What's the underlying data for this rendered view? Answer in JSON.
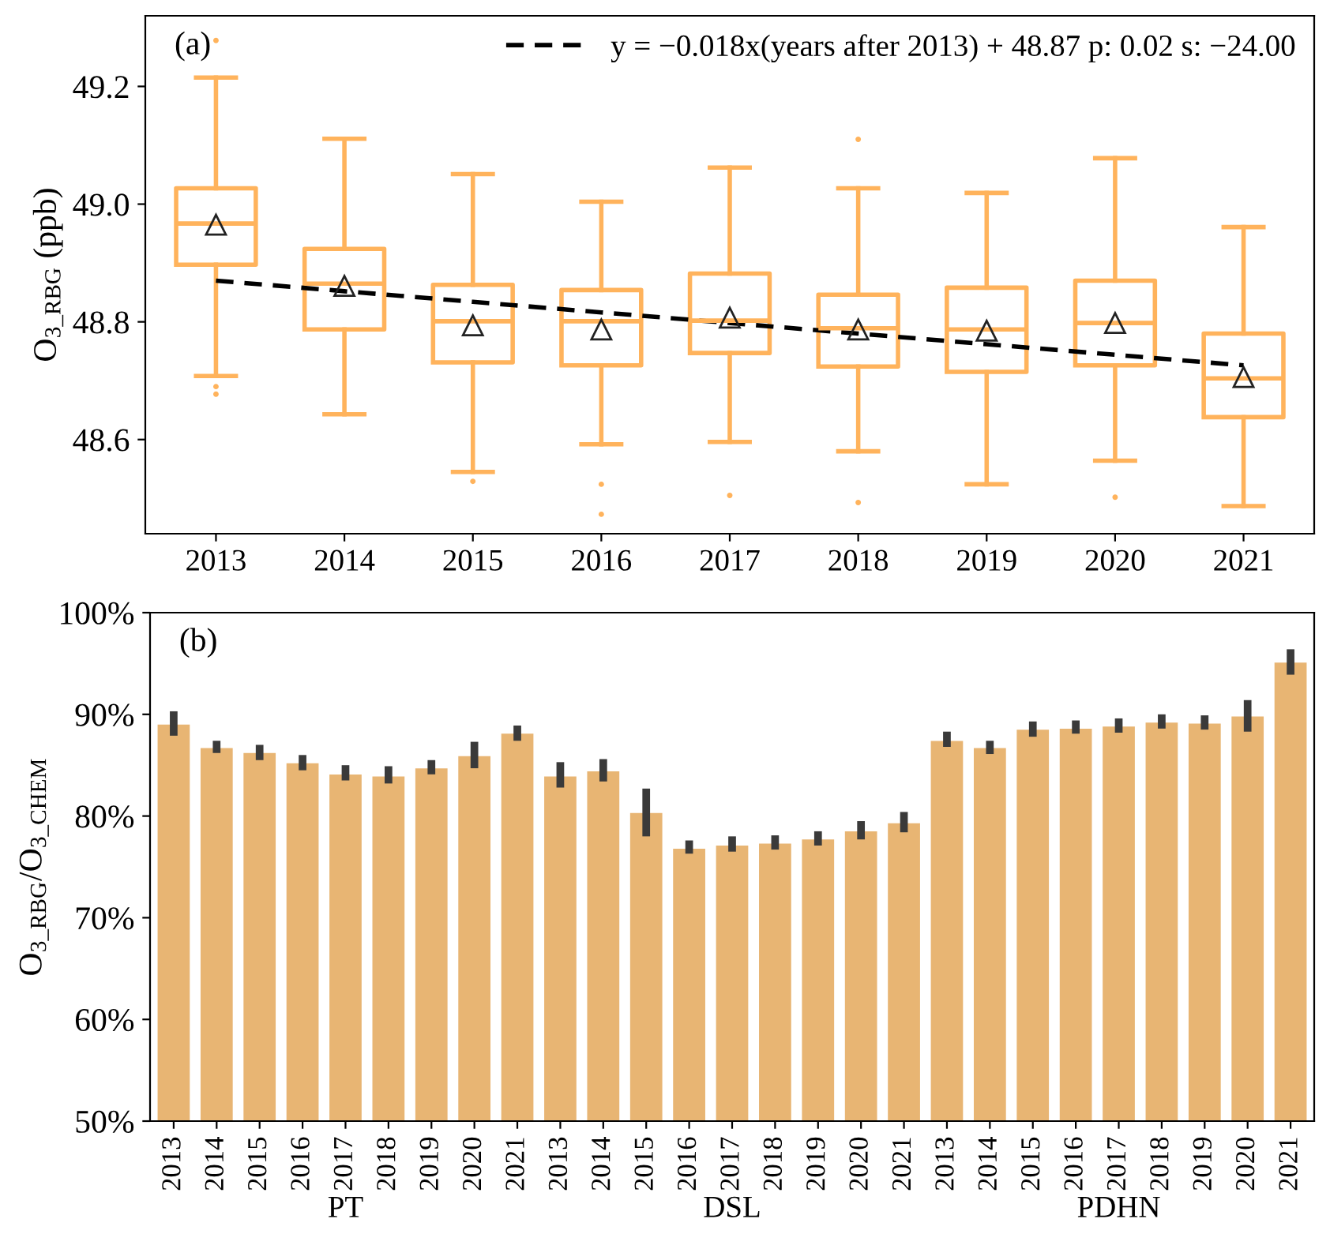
{
  "chart_data": [
    {
      "type": "box",
      "categories": [
        "2013",
        "2014",
        "2015",
        "2016",
        "2017",
        "2018",
        "2019",
        "2020",
        "2021"
      ],
      "ylabel": "O$_{3_RBG}$ (ppb)",
      "annotations": [
        "(a)"
      ],
      "ylim": [
        48.44,
        49.32
      ],
      "yticks": [
        48.6,
        48.8,
        {
          "value": 49,
          "label": "49.0"
        },
        49.2
      ],
      "legend": "top right",
      "grid": false,
      "series": [
        {
          "type": "box",
          "color": "#ffb35c",
          "boxes": [
            {
              "low": 48.708,
              "q1": 48.897,
              "median": 48.967,
              "q3": 49.027,
              "high": 49.215,
              "mean": 48.965,
              "outliers": [
                49.278,
                48.69,
                48.677
              ]
            },
            {
              "low": 48.643,
              "q1": 48.787,
              "median": 48.865,
              "q3": 48.924,
              "high": 49.111,
              "mean": 48.861
            },
            {
              "low": 48.545,
              "q1": 48.731,
              "median": 48.801,
              "q3": 48.863,
              "high": 49.051,
              "mean": 48.794,
              "outliers": [
                48.529
              ]
            },
            {
              "low": 48.592,
              "q1": 48.726,
              "median": 48.801,
              "q3": 48.854,
              "high": 49.004,
              "mean": 48.787,
              "outliers": [
                48.524,
                48.473
              ]
            },
            {
              "low": 48.596,
              "q1": 48.747,
              "median": 48.802,
              "q3": 48.882,
              "high": 49.062,
              "mean": 48.807,
              "outliers": [
                48.505
              ]
            },
            {
              "low": 48.58,
              "q1": 48.724,
              "median": 48.789,
              "q3": 48.846,
              "high": 49.027,
              "mean": 48.787,
              "outliers": [
                49.11,
                48.493
              ]
            },
            {
              "low": 48.524,
              "q1": 48.715,
              "median": 48.787,
              "q3": 48.858,
              "high": 49.019,
              "mean": 48.785
            },
            {
              "low": 48.564,
              "q1": 48.726,
              "median": 48.798,
              "q3": 48.87,
              "high": 49.078,
              "mean": 48.798,
              "outliers": [
                48.502
              ]
            },
            {
              "low": 48.487,
              "q1": 48.638,
              "median": 48.704,
              "q3": 48.78,
              "high": 48.961,
              "mean": 48.706
            }
          ]
        },
        {
          "type": "line",
          "name": "y = −0.018x(years after 2013) + 48.87 p: 0.02 s: −24.00",
          "color": "#000000",
          "line_style": "dashed",
          "values": [
            48.87,
            48.852,
            48.834,
            48.816,
            48.798,
            48.78,
            48.762,
            48.744,
            48.726
          ]
        }
      ]
    },
    {
      "type": "bar",
      "categories": [
        "2013",
        "2014",
        "2015",
        "2016",
        "2017",
        "2018",
        "2019",
        "2020",
        "2021",
        "2013",
        "2014",
        "2015",
        "2016",
        "2017",
        "2018",
        "2019",
        "2020",
        "2021",
        "2013",
        "2014",
        "2015",
        "2016",
        "2017",
        "2018",
        "2019",
        "2020",
        "2021"
      ],
      "ylabel": "O$_{3_RBG}$/O$_{3_CHEM}$",
      "annotations": [
        "(b)",
        "PT",
        "DSL",
        "PDHN"
      ],
      "ylim": [
        50,
        100
      ],
      "yticks": [
        {
          "value": 50,
          "label": "50%"
        },
        {
          "value": 60,
          "label": "60%"
        },
        {
          "value": 70,
          "label": "70%"
        },
        {
          "value": 80,
          "label": "80%"
        },
        {
          "value": 90,
          "label": "90%"
        },
        {
          "value": 100,
          "label": "100%"
        }
      ],
      "grid": false,
      "series": [
        {
          "color": "#e8b573",
          "values": [
            89.1,
            86.8,
            86.3,
            85.3,
            84.2,
            84.0,
            84.8,
            86.0,
            88.2,
            84.0,
            84.5,
            80.4,
            76.9,
            77.2,
            77.4,
            77.8,
            78.6,
            79.4,
            87.5,
            86.8,
            88.6,
            88.7,
            88.9,
            89.3,
            89.2,
            89.9,
            95.2
          ],
          "errors": [
            [
              87.9,
              90.3
            ],
            [
              86.2,
              87.4
            ],
            [
              85.5,
              87.0
            ],
            [
              84.5,
              86.0
            ],
            [
              83.5,
              85.0
            ],
            [
              83.2,
              84.9
            ],
            [
              84.1,
              85.5
            ],
            [
              84.7,
              87.3
            ],
            [
              87.4,
              88.9
            ],
            [
              82.8,
              85.3
            ],
            [
              83.4,
              85.6
            ],
            [
              78.0,
              82.7
            ],
            [
              76.3,
              77.6
            ],
            [
              76.5,
              78.0
            ],
            [
              76.7,
              78.1
            ],
            [
              77.1,
              78.5
            ],
            [
              77.7,
              79.5
            ],
            [
              78.4,
              80.4
            ],
            [
              86.8,
              88.3
            ],
            [
              86.1,
              87.4
            ],
            [
              87.8,
              89.3
            ],
            [
              88.1,
              89.4
            ],
            [
              88.2,
              89.6
            ],
            [
              88.6,
              90.0
            ],
            [
              88.5,
              89.9
            ],
            [
              88.3,
              91.4
            ],
            [
              93.9,
              96.4
            ]
          ]
        }
      ]
    }
  ]
}
